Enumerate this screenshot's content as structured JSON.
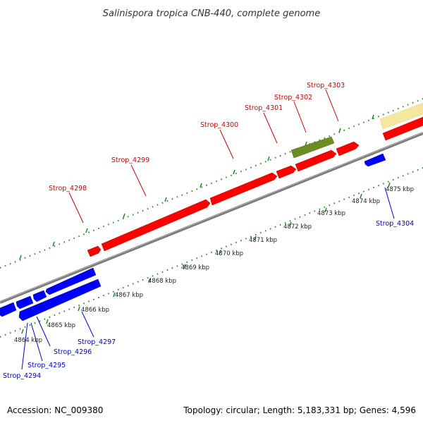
{
  "title": "Salinispora tropica CNB-440, complete genome",
  "footer": {
    "accession": "Accession: NC_009380",
    "summary": "Topology: circular; Length: 5,183,331 bp; Genes: 4,596"
  },
  "colors": {
    "forward_gene": "#ff0000",
    "reverse_gene": "#0000ff",
    "rna_feature": "#6b8e23",
    "other_feature": "#f5e6a0",
    "forward_label": "#cc0000",
    "reverse_label": "#0000cc",
    "backbone": "#8c8c8c",
    "dots": "#1a8a1a"
  },
  "scale_labels": [
    "4864 kbp",
    "4865 kbp",
    "4866 kbp",
    "4867 kbp",
    "4868 kbp",
    "4869 kbp",
    "4870 kbp",
    "4871 kbp",
    "4872 kbp",
    "4873 kbp",
    "4874 kbp",
    "4875 kbp"
  ],
  "forward_gene_labels": [
    "Strop_4298",
    "Strop_4299",
    "Strop_4300",
    "Strop_4301",
    "Strop_4302",
    "Strop_4303"
  ],
  "reverse_gene_labels": [
    "Strop_4294",
    "Strop_4295",
    "Strop_4296",
    "Strop_4297",
    "Strop_4304"
  ]
}
